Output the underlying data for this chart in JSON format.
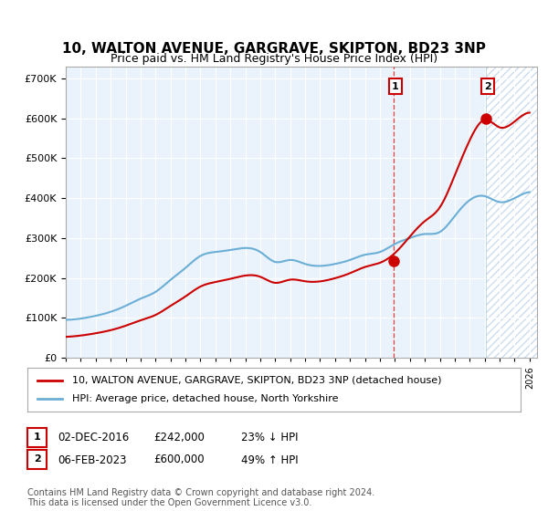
{
  "title": "10, WALTON AVENUE, GARGRAVE, SKIPTON, BD23 3NP",
  "subtitle": "Price paid vs. HM Land Registry's House Price Index (HPI)",
  "ylabel_ticks": [
    "£0",
    "£100K",
    "£200K",
    "£300K",
    "£400K",
    "£500K",
    "£600K",
    "£700K"
  ],
  "ylim": [
    0,
    730000
  ],
  "xlim_start": 1995.0,
  "xlim_end": 2026.5,
  "hpi_color": "#6baed6",
  "price_color": "#cc0000",
  "sale1_date": 2016.92,
  "sale1_price": 242000,
  "sale2_date": 2023.09,
  "sale2_price": 600000,
  "legend_label1": "10, WALTON AVENUE, GARGRAVE, SKIPTON, BD23 3NP (detached house)",
  "legend_label2": "HPI: Average price, detached house, North Yorkshire",
  "note1_label": "1",
  "note1_date": "02-DEC-2016",
  "note1_price": "£242,000",
  "note1_hpi": "23% ↓ HPI",
  "note2_label": "2",
  "note2_date": "06-FEB-2023",
  "note2_price": "£600,000",
  "note2_hpi": "49% ↑ HPI",
  "footer": "Contains HM Land Registry data © Crown copyright and database right 2024.\nThis data is licensed under the Open Government Licence v3.0.",
  "background_color": "#ffffff",
  "plot_bg_color": "#eaf3fb",
  "hatch_color": "#ccddee"
}
